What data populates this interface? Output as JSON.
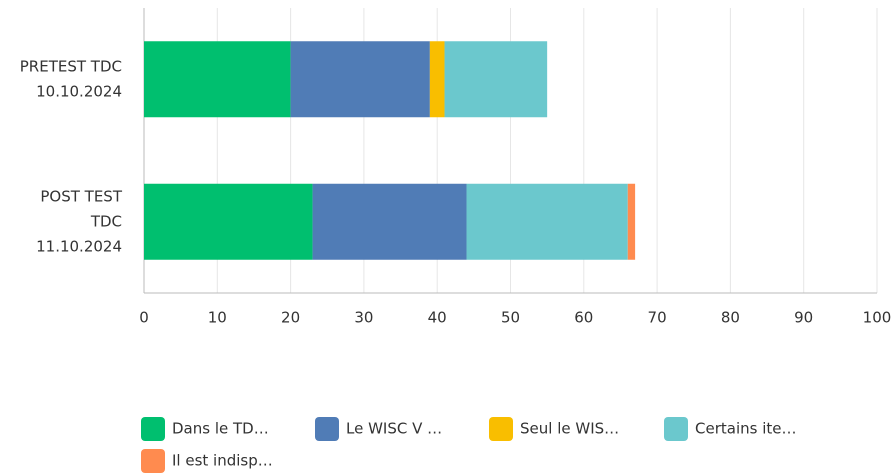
{
  "chart_data": {
    "type": "stacked_bar_horizontal",
    "categories": [
      [
        "PRETEST TDC",
        "10.10.2024"
      ],
      [
        "POST TEST",
        "TDC",
        "11.10.2024"
      ]
    ],
    "series": [
      {
        "name": "Dans le TD…",
        "color": "#00bf6f",
        "values": [
          20,
          23
        ]
      },
      {
        "name": "Le WISC V …",
        "color": "#507cb6",
        "values": [
          19,
          21
        ]
      },
      {
        "name": "Seul le WIS…",
        "color": "#f9be00",
        "values": [
          2,
          0
        ]
      },
      {
        "name": "Certains ite…",
        "color": "#6bc8cd",
        "values": [
          14,
          22
        ]
      },
      {
        "name": "Il est indisp…",
        "color": "#ff8b4f",
        "values": [
          0,
          1
        ]
      }
    ],
    "xlim": [
      0,
      100
    ],
    "xticks": [
      0,
      10,
      20,
      30,
      40,
      50,
      60,
      70,
      80,
      90,
      100
    ],
    "grid": true
  }
}
